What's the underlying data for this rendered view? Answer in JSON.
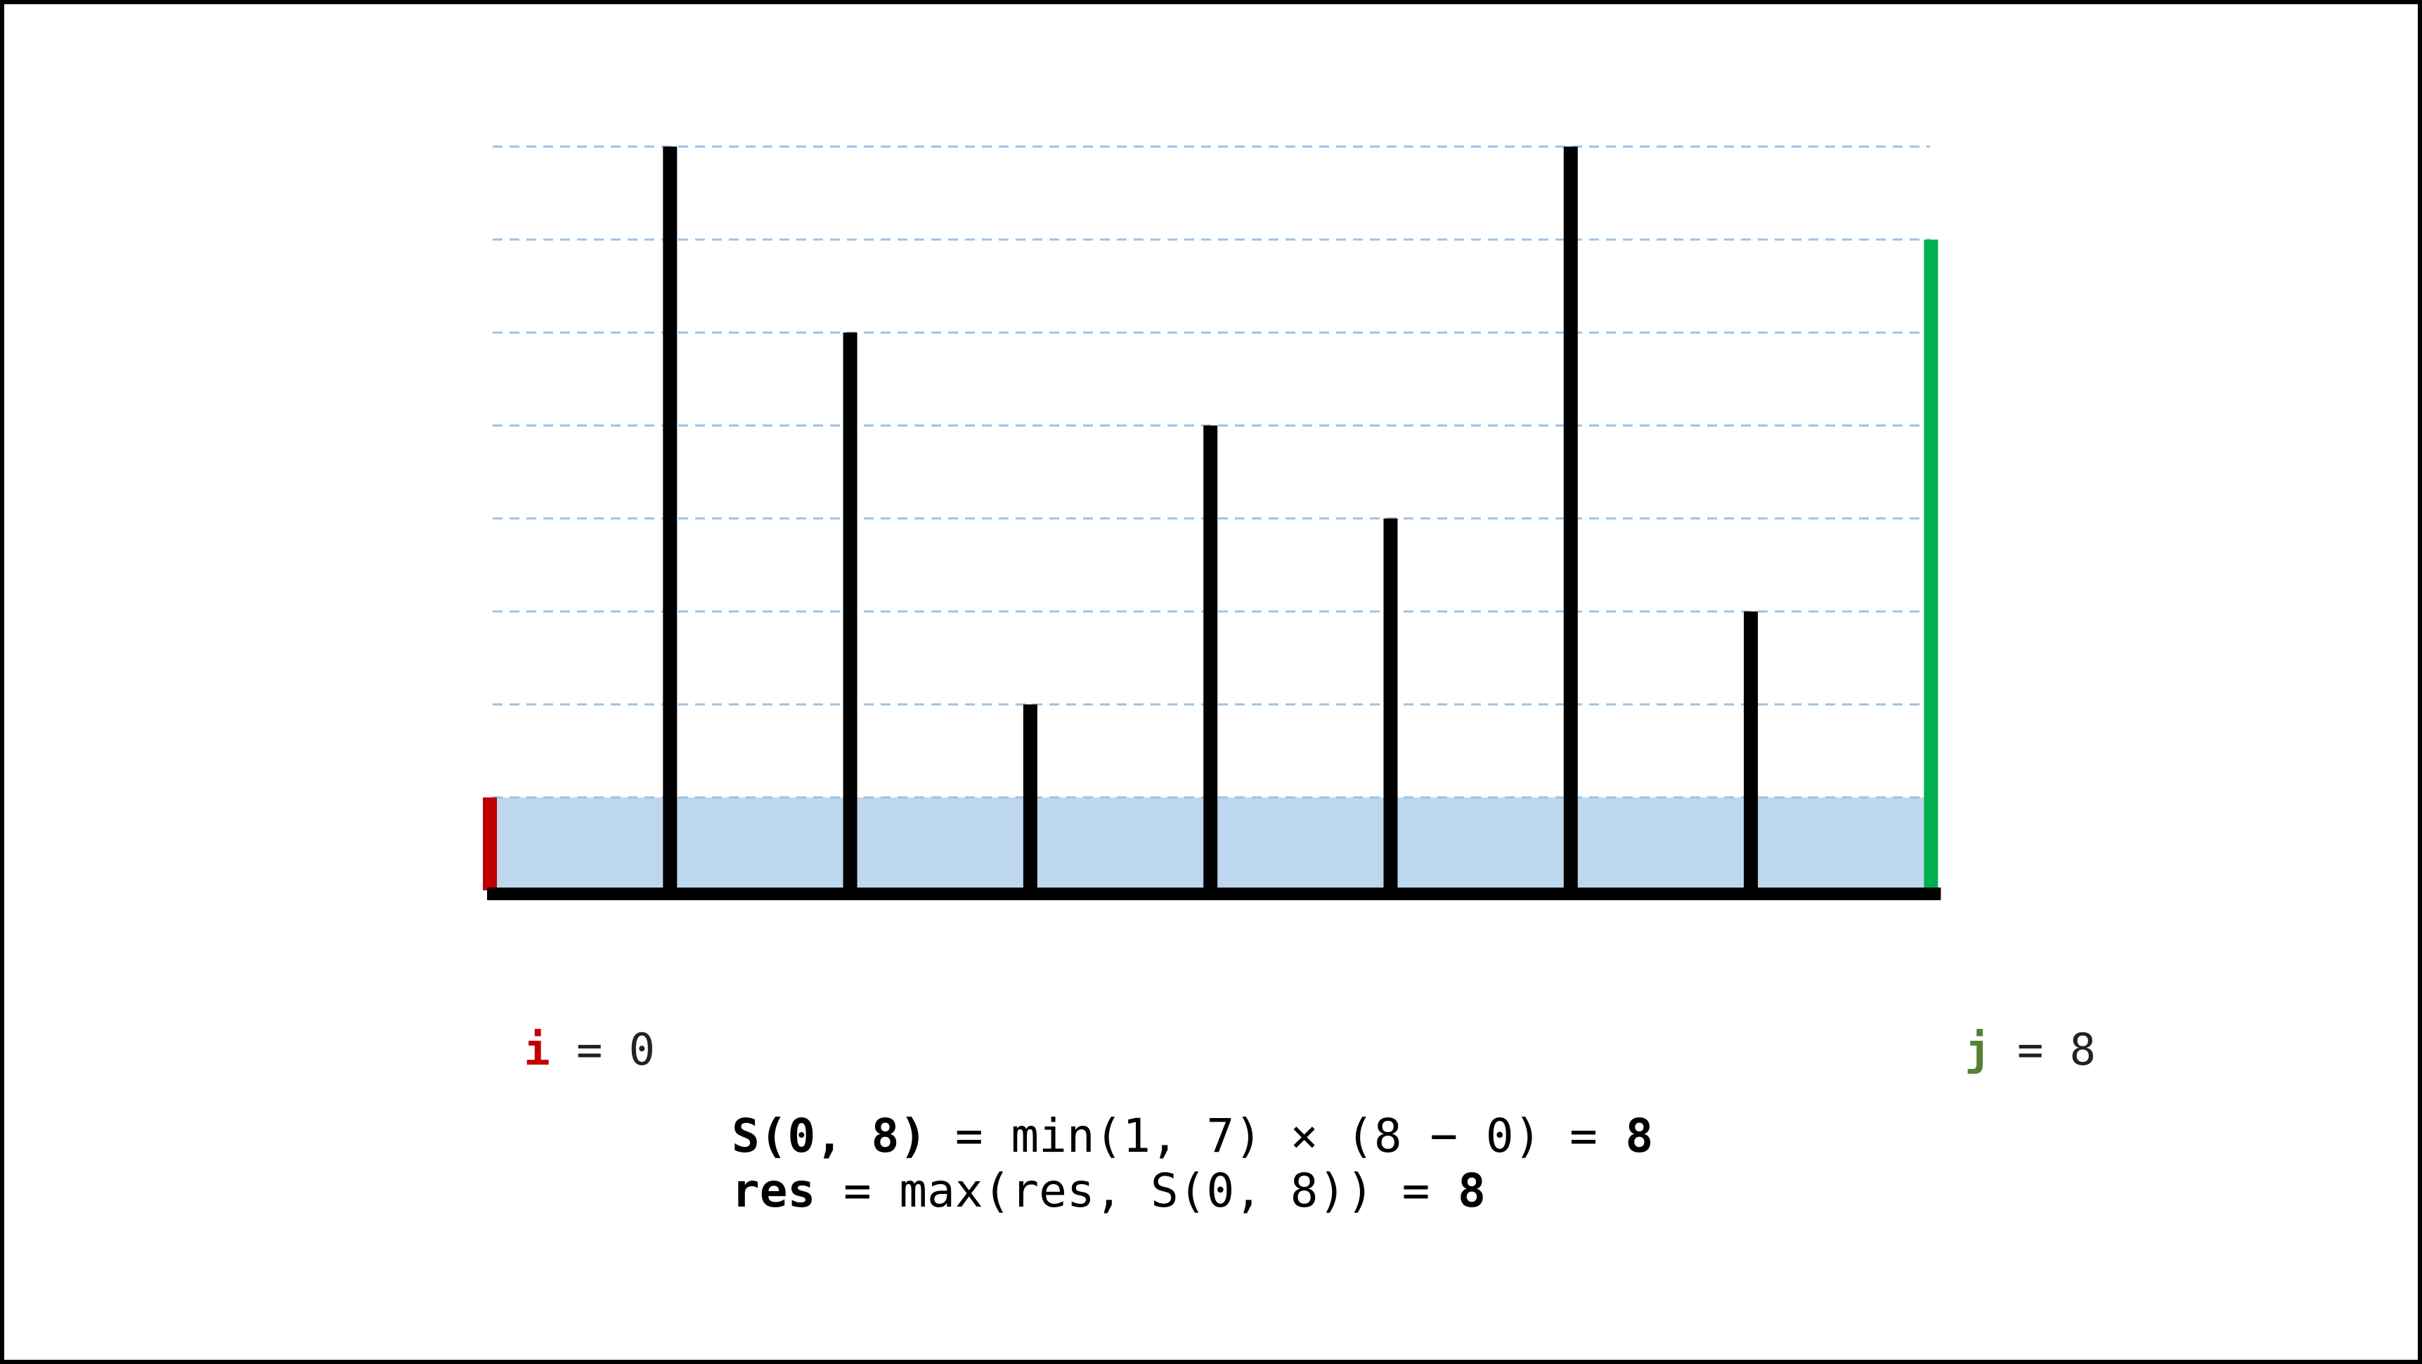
{
  "chart_data": {
    "type": "bar",
    "description_heights": [
      1,
      8,
      6,
      2,
      5,
      4,
      8,
      3,
      7
    ],
    "values": [
      1,
      8,
      6,
      2,
      5,
      4,
      8,
      3,
      7
    ],
    "ylim": [
      0,
      8
    ],
    "grid": "dashed horizontal at each integer level",
    "left_pointer_index": 0,
    "right_pointer_index": 8,
    "water_level": 1
  },
  "colors": {
    "bar": "#000000",
    "left_pointer": "#c00000",
    "right_pointer": "#00b050",
    "water": "#bdd7ee",
    "grid": "#9dc3e6",
    "i_label": "#c00000",
    "j_label": "#548235"
  },
  "pointers": {
    "i": {
      "name": "i",
      "eq": " = ",
      "value": "0"
    },
    "j": {
      "name": "j",
      "eq": " = ",
      "value": "8"
    }
  },
  "formula": {
    "line1": {
      "lhs": "S(0, 8)",
      "mid": " = min(1, 7) × (8 − 0) = ",
      "result": "8"
    },
    "line2": {
      "lhs": "res",
      "mid": " = max(res, S(0, 8)) = ",
      "result": "8"
    }
  }
}
